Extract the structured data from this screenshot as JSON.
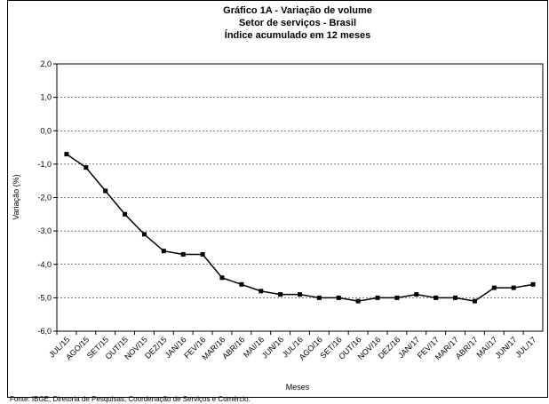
{
  "chart_data": {
    "type": "line",
    "title": [
      "Gráfico 1A - Variação de volume",
      "Setor de serviços - Brasil",
      "Índice acumulado em 12 meses"
    ],
    "x_label": "Meses",
    "y_label": "Variação (%)",
    "source": "Fonte: IBGE, Diretoria de Pesquisas, Coordenação de Serviços e Comércio.",
    "categories": [
      "JUL/15",
      "AGO/15",
      "SET/15",
      "OUT/15",
      "NOV/15",
      "DEZ/15",
      "JAN/16",
      "FEV/16",
      "MAR/16",
      "ABR/16",
      "MAI/16",
      "JUN/16",
      "JUL/16",
      "AGO/16",
      "SET/16",
      "OUT/16",
      "NOV/16",
      "DEZ/16",
      "JAN/17",
      "FEV/17",
      "MAR/17",
      "ABR/17",
      "MAI/17",
      "JUN/17",
      "JUL/17"
    ],
    "values": [
      -0.7,
      -1.1,
      -1.8,
      -2.5,
      -3.1,
      -3.6,
      -3.7,
      -3.7,
      -4.4,
      -4.6,
      -4.8,
      -4.9,
      -4.9,
      -5.0,
      -5.0,
      -5.1,
      -5.0,
      -5.0,
      -4.9,
      -5.0,
      -5.0,
      -5.1,
      -4.7,
      -4.7,
      -4.6
    ],
    "color": "#000000",
    "ylim": [
      -6,
      2
    ],
    "yticks": [
      {
        "value": 2,
        "label": "2,0"
      },
      {
        "value": 1,
        "label": "1,0"
      },
      {
        "value": 0,
        "label": "0,0"
      },
      {
        "value": -1,
        "label": "-1,0"
      },
      {
        "value": -2,
        "label": "-2,0"
      },
      {
        "value": -3,
        "label": "-3,0"
      },
      {
        "value": -4,
        "label": "-4,0"
      },
      {
        "value": -5,
        "label": "-5,0"
      },
      {
        "value": -6,
        "label": "-6,0"
      }
    ],
    "grid": true
  }
}
